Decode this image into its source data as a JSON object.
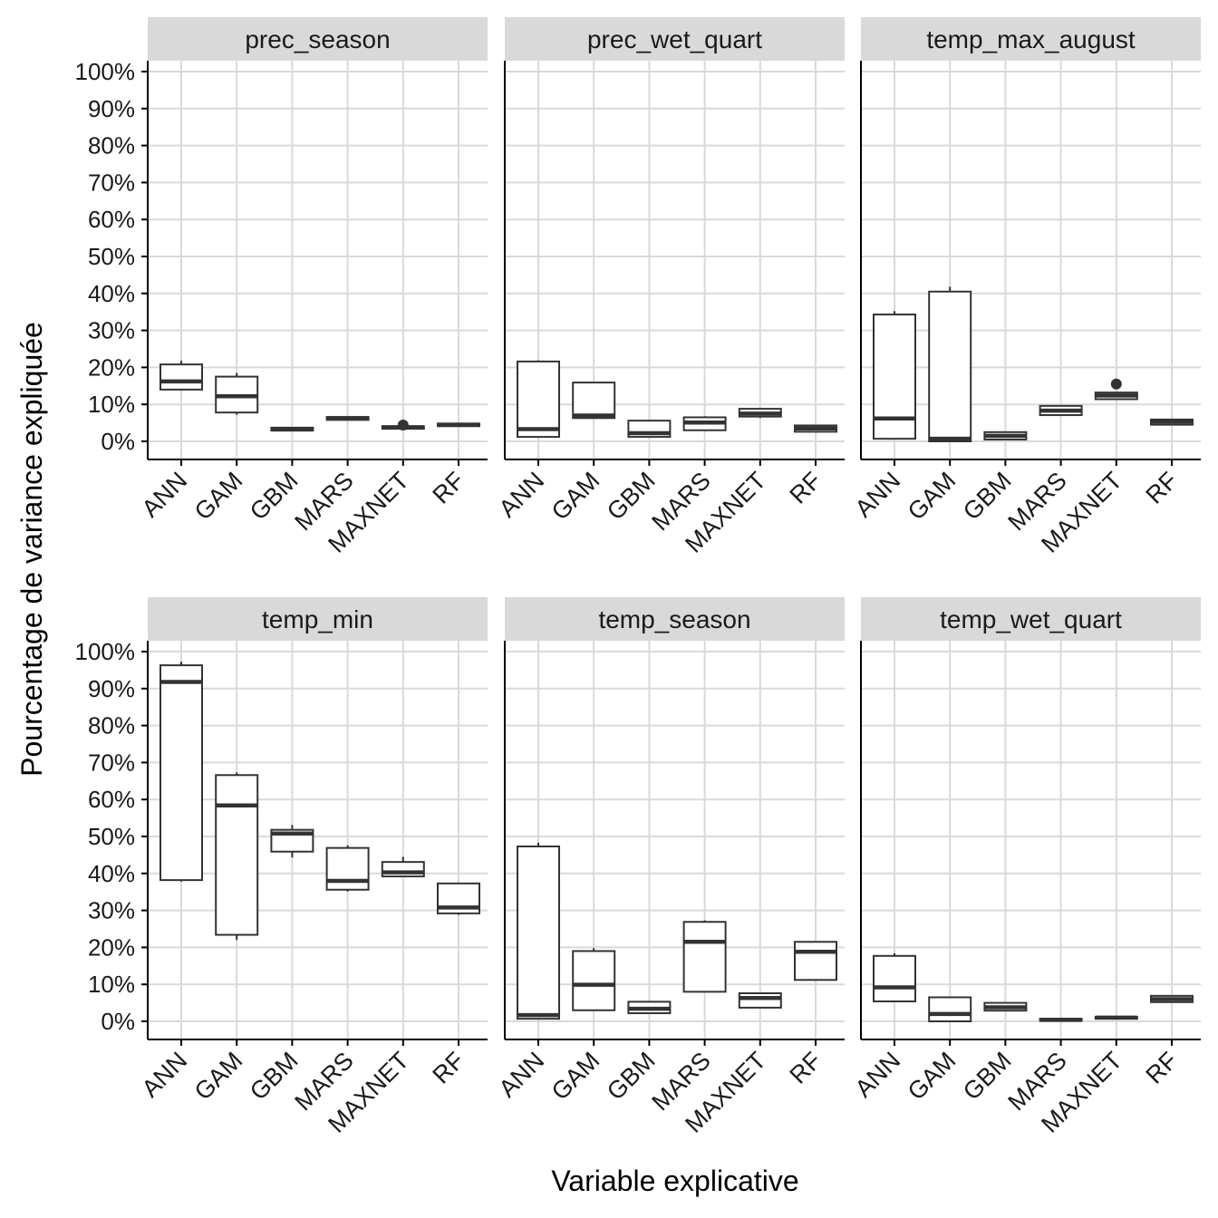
{
  "labels": {
    "xlabel": "Variable explicative",
    "ylabel": "Pourcentage de variance expliquée"
  },
  "chart_data": {
    "type": "boxplot",
    "xlabel": "Variable explicative",
    "ylabel": "Pourcentage de variance expliquée",
    "ylim": [
      0,
      100
    ],
    "y_ticks": [
      "0%",
      "10%",
      "20%",
      "30%",
      "40%",
      "50%",
      "60%",
      "70%",
      "80%",
      "90%",
      "100%"
    ],
    "y_tick_values": [
      0,
      10,
      20,
      30,
      40,
      50,
      60,
      70,
      80,
      90,
      100
    ],
    "categories": [
      "ANN",
      "GAM",
      "GBM",
      "MARS",
      "MAXNET",
      "RF"
    ],
    "grid": true,
    "colors": {
      "strip_bg": "#d9d9d9",
      "grid": "#d9d9d9",
      "box_line": "#333333",
      "axis": "#000000"
    },
    "panels": [
      {
        "name": "prec_season",
        "boxes": [
          {
            "category": "ANN",
            "min": 14.0,
            "q1": 14.0,
            "median": 16.2,
            "q3": 20.8,
            "max": 21.8,
            "outliers": []
          },
          {
            "category": "GAM",
            "min": 7.2,
            "q1": 7.8,
            "median": 12.2,
            "q3": 17.5,
            "max": 18.5,
            "outliers": []
          },
          {
            "category": "GBM",
            "min": 2.9,
            "q1": 2.9,
            "median": 3.3,
            "q3": 3.7,
            "max": 3.9,
            "outliers": []
          },
          {
            "category": "MARS",
            "min": 5.8,
            "q1": 5.8,
            "median": 6.2,
            "q3": 6.6,
            "max": 6.8,
            "outliers": []
          },
          {
            "category": "MAXNET",
            "min": 3.4,
            "q1": 3.4,
            "median": 3.8,
            "q3": 4.1,
            "max": 4.1,
            "outliers": [
              4.4
            ]
          },
          {
            "category": "RF",
            "min": 4.1,
            "q1": 4.1,
            "median": 4.5,
            "q3": 4.8,
            "max": 5.0,
            "outliers": []
          }
        ]
      },
      {
        "name": "prec_wet_quart",
        "boxes": [
          {
            "category": "ANN",
            "min": 1.2,
            "q1": 1.2,
            "median": 3.3,
            "q3": 21.6,
            "max": 21.9,
            "outliers": []
          },
          {
            "category": "GAM",
            "min": 6.3,
            "q1": 6.3,
            "median": 7.0,
            "q3": 15.9,
            "max": 15.9,
            "outliers": []
          },
          {
            "category": "GBM",
            "min": 1.2,
            "q1": 1.2,
            "median": 2.2,
            "q3": 5.6,
            "max": 5.6,
            "outliers": []
          },
          {
            "category": "MARS",
            "min": 3.0,
            "q1": 3.0,
            "median": 5.1,
            "q3": 6.5,
            "max": 6.8,
            "outliers": []
          },
          {
            "category": "MAXNET",
            "min": 6.3,
            "q1": 6.7,
            "median": 7.5,
            "q3": 8.8,
            "max": 8.8,
            "outliers": []
          },
          {
            "category": "RF",
            "min": 2.6,
            "q1": 2.6,
            "median": 3.5,
            "q3": 4.3,
            "max": 4.4,
            "outliers": []
          }
        ]
      },
      {
        "name": "temp_max_august",
        "boxes": [
          {
            "category": "ANN",
            "min": 0.7,
            "q1": 0.7,
            "median": 6.2,
            "q3": 34.3,
            "max": 35.2,
            "outliers": []
          },
          {
            "category": "GAM",
            "min": 0.0,
            "q1": 0.0,
            "median": 0.7,
            "q3": 40.5,
            "max": 41.8,
            "outliers": []
          },
          {
            "category": "GBM",
            "min": 0.5,
            "q1": 0.5,
            "median": 1.5,
            "q3": 2.5,
            "max": 2.5,
            "outliers": []
          },
          {
            "category": "MARS",
            "min": 7.1,
            "q1": 7.1,
            "median": 8.3,
            "q3": 9.6,
            "max": 9.6,
            "outliers": []
          },
          {
            "category": "MAXNET",
            "min": 11.4,
            "q1": 11.4,
            "median": 12.4,
            "q3": 13.2,
            "max": 13.4,
            "outliers": [
              15.5
            ]
          },
          {
            "category": "RF",
            "min": 4.5,
            "q1": 4.5,
            "median": 5.3,
            "q3": 5.9,
            "max": 5.9,
            "outliers": []
          }
        ]
      },
      {
        "name": "temp_min",
        "boxes": [
          {
            "category": "ANN",
            "min": 37.8,
            "q1": 38.2,
            "median": 91.8,
            "q3": 96.3,
            "max": 97.3,
            "outliers": []
          },
          {
            "category": "GAM",
            "min": 22.0,
            "q1": 23.4,
            "median": 58.4,
            "q3": 66.6,
            "max": 67.3,
            "outliers": []
          },
          {
            "category": "GBM",
            "min": 44.3,
            "q1": 45.9,
            "median": 50.8,
            "q3": 51.8,
            "max": 53.1,
            "outliers": []
          },
          {
            "category": "MARS",
            "min": 35.1,
            "q1": 35.6,
            "median": 38.0,
            "q3": 46.9,
            "max": 47.6,
            "outliers": []
          },
          {
            "category": "MAXNET",
            "min": 39.2,
            "q1": 39.2,
            "median": 40.3,
            "q3": 43.1,
            "max": 44.5,
            "outliers": []
          },
          {
            "category": "RF",
            "min": 28.8,
            "q1": 29.2,
            "median": 30.8,
            "q3": 37.3,
            "max": 37.3,
            "outliers": []
          }
        ]
      },
      {
        "name": "temp_season",
        "boxes": [
          {
            "category": "ANN",
            "min": 0.7,
            "q1": 0.7,
            "median": 1.7,
            "q3": 47.3,
            "max": 48.3,
            "outliers": []
          },
          {
            "category": "GAM",
            "min": 2.8,
            "q1": 3.0,
            "median": 9.9,
            "q3": 19.0,
            "max": 19.8,
            "outliers": []
          },
          {
            "category": "GBM",
            "min": 2.2,
            "q1": 2.2,
            "median": 3.4,
            "q3": 5.3,
            "max": 5.3,
            "outliers": []
          },
          {
            "category": "MARS",
            "min": 8.0,
            "q1": 8.0,
            "median": 21.5,
            "q3": 26.9,
            "max": 27.3,
            "outliers": []
          },
          {
            "category": "MAXNET",
            "min": 3.7,
            "q1": 3.7,
            "median": 6.3,
            "q3": 7.6,
            "max": 7.6,
            "outliers": []
          },
          {
            "category": "RF",
            "min": 11.2,
            "q1": 11.2,
            "median": 18.8,
            "q3": 21.5,
            "max": 21.5,
            "outliers": []
          }
        ]
      },
      {
        "name": "temp_wet_quart",
        "boxes": [
          {
            "category": "ANN",
            "min": 5.4,
            "q1": 5.4,
            "median": 9.2,
            "q3": 17.7,
            "max": 18.4,
            "outliers": []
          },
          {
            "category": "GAM",
            "min": 0.0,
            "q1": 0.0,
            "median": 2.0,
            "q3": 6.5,
            "max": 6.5,
            "outliers": []
          },
          {
            "category": "GBM",
            "min": 2.9,
            "q1": 2.9,
            "median": 3.8,
            "q3": 5.0,
            "max": 5.0,
            "outliers": []
          },
          {
            "category": "MARS",
            "min": 0.2,
            "q1": 0.2,
            "median": 0.4,
            "q3": 0.7,
            "max": 0.7,
            "outliers": []
          },
          {
            "category": "MAXNET",
            "min": 0.7,
            "q1": 0.7,
            "median": 1.0,
            "q3": 1.2,
            "max": 1.2,
            "outliers": []
          },
          {
            "category": "RF",
            "min": 5.2,
            "q1": 5.2,
            "median": 6.0,
            "q3": 6.9,
            "max": 6.9,
            "outliers": []
          }
        ]
      }
    ]
  }
}
